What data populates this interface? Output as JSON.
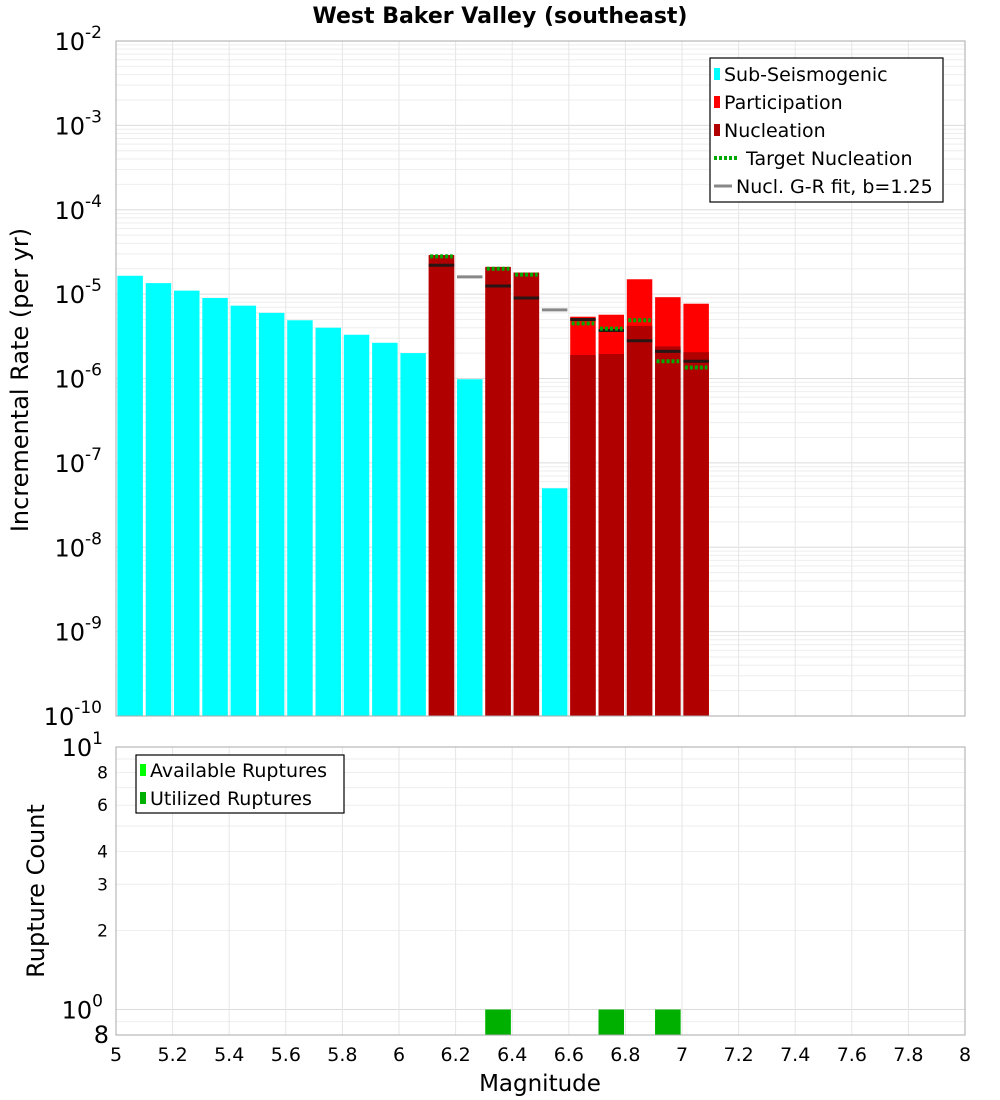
{
  "chart_data": [
    {
      "type": "bar",
      "title": "West Baker Valley (southeast)",
      "xlabel": "",
      "ylabel": "Incremental Rate (per yr)",
      "yscale": "log",
      "xlim": [
        5,
        8
      ],
      "ylim": [
        1e-10,
        0.01
      ],
      "y_ticks": [
        {
          "base": "10",
          "exp": "-10"
        },
        {
          "base": "10",
          "exp": "-9"
        },
        {
          "base": "10",
          "exp": "-8"
        },
        {
          "base": "10",
          "exp": "-7"
        },
        {
          "base": "10",
          "exp": "-6"
        },
        {
          "base": "10",
          "exp": "-5"
        },
        {
          "base": "10",
          "exp": "-4"
        },
        {
          "base": "10",
          "exp": "-3"
        },
        {
          "base": "10",
          "exp": "-2"
        }
      ],
      "legend": {
        "position": "top-right",
        "entries": [
          {
            "label": "Sub-Seismogenic",
            "color": "#00ffff",
            "style": "bar"
          },
          {
            "label": "Participation",
            "color": "#ff0000",
            "style": "bar"
          },
          {
            "label": "Nucleation",
            "color": "#b00000",
            "style": "bar"
          },
          {
            "label": "Target Nucleation",
            "color": "#00aa00",
            "style": "dotted"
          },
          {
            "label": "Nucl. G-R fit, b=1.25",
            "color": "#888888",
            "style": "line"
          }
        ]
      },
      "series": [
        {
          "name": "Sub-Seismogenic",
          "color": "#00ffff",
          "points": [
            {
              "x": 5.05,
              "y": 1.65e-05
            },
            {
              "x": 5.15,
              "y": 1.35e-05
            },
            {
              "x": 5.25,
              "y": 1.1e-05
            },
            {
              "x": 5.35,
              "y": 9e-06
            },
            {
              "x": 5.45,
              "y": 7.3e-06
            },
            {
              "x": 5.55,
              "y": 6e-06
            },
            {
              "x": 5.65,
              "y": 4.9e-06
            },
            {
              "x": 5.75,
              "y": 4e-06
            },
            {
              "x": 5.85,
              "y": 3.3e-06
            },
            {
              "x": 5.95,
              "y": 2.65e-06
            },
            {
              "x": 6.05,
              "y": 2e-06
            },
            {
              "x": 6.25,
              "y": 9.8e-07
            },
            {
              "x": 6.55,
              "y": 5e-08
            }
          ]
        },
        {
          "name": "Participation",
          "color": "#ff0000",
          "points": [
            {
              "x": 6.15,
              "y": 2.9e-05
            },
            {
              "x": 6.35,
              "y": 2.1e-05
            },
            {
              "x": 6.45,
              "y": 1.8e-05
            },
            {
              "x": 6.65,
              "y": 5.4e-06
            },
            {
              "x": 6.75,
              "y": 5.7e-06
            },
            {
              "x": 6.85,
              "y": 1.5e-05
            },
            {
              "x": 6.95,
              "y": 9.2e-06
            },
            {
              "x": 7.05,
              "y": 7.7e-06
            }
          ]
        },
        {
          "name": "Nucleation",
          "color": "#b00000",
          "points": [
            {
              "x": 6.15,
              "y": 2.9e-05
            },
            {
              "x": 6.35,
              "y": 2.1e-05
            },
            {
              "x": 6.45,
              "y": 1.8e-05
            },
            {
              "x": 6.65,
              "y": 1.9e-06
            },
            {
              "x": 6.75,
              "y": 1.95e-06
            },
            {
              "x": 6.85,
              "y": 4.2e-06
            },
            {
              "x": 6.95,
              "y": 2.4e-06
            },
            {
              "x": 7.05,
              "y": 2.05e-06
            }
          ]
        },
        {
          "name": "Target Nucleation",
          "color": "#00aa00",
          "points": [
            {
              "x": 6.15,
              "y": 2.8e-05
            },
            {
              "x": 6.35,
              "y": 2e-05
            },
            {
              "x": 6.45,
              "y": 1.7e-05
            },
            {
              "x": 6.65,
              "y": 4.5e-06
            },
            {
              "x": 6.75,
              "y": 3.9e-06
            },
            {
              "x": 6.85,
              "y": 4.9e-06
            },
            {
              "x": 6.95,
              "y": 1.6e-06
            },
            {
              "x": 7.05,
              "y": 1.35e-06
            }
          ]
        },
        {
          "name": "Nucl. G-R fit, b=1.25",
          "color": "#888888",
          "points": [
            {
              "x": 6.15,
              "y": 2.2e-05
            },
            {
              "x": 6.25,
              "y": 1.6e-05
            },
            {
              "x": 6.35,
              "y": 1.25e-05
            },
            {
              "x": 6.45,
              "y": 9e-06
            },
            {
              "x": 6.55,
              "y": 6.5e-06
            },
            {
              "x": 6.65,
              "y": 5e-06
            },
            {
              "x": 6.75,
              "y": 3.7e-06
            },
            {
              "x": 6.85,
              "y": 2.8e-06
            },
            {
              "x": 6.95,
              "y": 2.1e-06
            },
            {
              "x": 7.05,
              "y": 1.6e-06
            }
          ]
        }
      ]
    },
    {
      "type": "bar",
      "title": "",
      "xlabel": "Magnitude",
      "ylabel": "Rupture Count",
      "yscale": "log",
      "xlim": [
        5,
        8
      ],
      "ylim": [
        0.8,
        10
      ],
      "x_ticks": [
        "5",
        "5.2",
        "5.4",
        "5.6",
        "5.8",
        "6",
        "6.2",
        "6.4",
        "6.6",
        "6.8",
        "7",
        "7.2",
        "7.4",
        "7.6",
        "7.8",
        "8"
      ],
      "y_ticks": [
        {
          "value": 10,
          "base": "10",
          "exp": "1"
        },
        {
          "value": 8,
          "label": "8"
        },
        {
          "value": 6,
          "label": "6"
        },
        {
          "value": 4,
          "label": "4"
        },
        {
          "value": 3,
          "label": "3"
        },
        {
          "value": 2,
          "label": "2"
        },
        {
          "value": 1,
          "base": "10",
          "exp": "0"
        },
        {
          "value": 0.8,
          "label": "8"
        }
      ],
      "legend": {
        "position": "top-left",
        "entries": [
          {
            "label": "Available Ruptures",
            "color": "#00ff00",
            "style": "bar"
          },
          {
            "label": "Utilized Ruptures",
            "color": "#00b000",
            "style": "bar"
          }
        ]
      },
      "series": [
        {
          "name": "Available Ruptures",
          "color": "#00ff00",
          "points": [
            {
              "x": 6.35,
              "y": 1
            },
            {
              "x": 6.75,
              "y": 1
            },
            {
              "x": 6.95,
              "y": 1
            }
          ]
        },
        {
          "name": "Utilized Ruptures",
          "color": "#00b000",
          "points": [
            {
              "x": 6.35,
              "y": 1
            },
            {
              "x": 6.75,
              "y": 1
            },
            {
              "x": 6.95,
              "y": 1
            }
          ]
        }
      ]
    }
  ]
}
